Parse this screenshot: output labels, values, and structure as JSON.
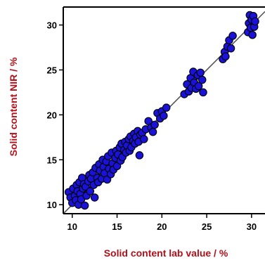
{
  "chart_data": {
    "type": "scatter",
    "xlabel": "Solid content lab value / %",
    "ylabel": "Solid content NIR / %",
    "xlim": [
      9,
      31.5
    ],
    "ylim": [
      9,
      32
    ],
    "xticks": [
      10,
      15,
      20,
      25,
      30
    ],
    "yticks": [
      10,
      15,
      20,
      25,
      30
    ],
    "grid": false,
    "legend": "none",
    "fit_line": {
      "from": [
        9,
        9
      ],
      "to": [
        31.5,
        31.5
      ]
    },
    "colors": {
      "marker_fill": "#1a12d8",
      "marker_edge": "#000000",
      "axis_title": "#b3101a",
      "fit_line": "#555555"
    },
    "series": [
      {
        "points": [
          [
            9.6,
            11.4
          ],
          [
            9.8,
            10.8
          ],
          [
            10.0,
            10.2
          ],
          [
            10.1,
            11.8
          ],
          [
            10.3,
            11.0
          ],
          [
            10.4,
            10.5
          ],
          [
            10.5,
            12.2
          ],
          [
            10.6,
            11.5
          ],
          [
            10.7,
            10.0
          ],
          [
            10.8,
            12.5
          ],
          [
            10.9,
            11.2
          ],
          [
            11.0,
            10.6
          ],
          [
            11.1,
            13.0
          ],
          [
            11.2,
            11.8
          ],
          [
            11.3,
            12.3
          ],
          [
            11.4,
            9.9
          ],
          [
            11.5,
            12.0
          ],
          [
            11.6,
            11.0
          ],
          [
            11.8,
            12.6
          ],
          [
            11.9,
            13.3
          ],
          [
            12.0,
            11.5
          ],
          [
            12.1,
            12.9
          ],
          [
            12.3,
            13.6
          ],
          [
            12.4,
            12.2
          ],
          [
            12.5,
            10.8
          ],
          [
            12.6,
            14.1
          ],
          [
            12.8,
            13.0
          ],
          [
            12.9,
            12.5
          ],
          [
            13.0,
            14.5
          ],
          [
            13.1,
            13.8
          ],
          [
            13.3,
            12.9
          ],
          [
            13.4,
            15.0
          ],
          [
            13.5,
            14.2
          ],
          [
            13.6,
            13.5
          ],
          [
            13.8,
            14.8
          ],
          [
            13.9,
            12.8
          ],
          [
            14.0,
            15.4
          ],
          [
            14.1,
            14.0
          ],
          [
            14.3,
            13.4
          ],
          [
            14.4,
            15.8
          ],
          [
            14.5,
            14.6
          ],
          [
            14.6,
            13.9
          ],
          [
            14.8,
            15.2
          ],
          [
            14.9,
            16.0
          ],
          [
            15.0,
            14.3
          ],
          [
            15.1,
            15.6
          ],
          [
            15.3,
            16.4
          ],
          [
            15.4,
            14.9
          ],
          [
            15.5,
            16.8
          ],
          [
            15.6,
            15.3
          ],
          [
            15.8,
            16.1
          ],
          [
            15.9,
            17.0
          ],
          [
            16.0,
            15.8
          ],
          [
            16.1,
            16.6
          ],
          [
            16.3,
            17.3
          ],
          [
            16.4,
            16.0
          ],
          [
            16.5,
            17.6
          ],
          [
            16.6,
            16.4
          ],
          [
            16.8,
            17.1
          ],
          [
            16.9,
            17.9
          ],
          [
            17.0,
            16.8
          ],
          [
            17.1,
            17.5
          ],
          [
            17.3,
            18.2
          ],
          [
            17.4,
            17.0
          ],
          [
            17.5,
            15.5
          ],
          [
            17.6,
            17.8
          ],
          [
            17.8,
            18.0
          ],
          [
            18.0,
            17.3
          ],
          [
            18.2,
            18.4
          ],
          [
            18.5,
            19.3
          ],
          [
            18.8,
            18.6
          ],
          [
            19.0,
            18.1
          ],
          [
            19.2,
            18.9
          ],
          [
            19.5,
            20.2
          ],
          [
            19.8,
            19.6
          ],
          [
            20.0,
            20.4
          ],
          [
            20.2,
            19.9
          ],
          [
            20.5,
            20.8
          ],
          [
            22.5,
            22.3
          ],
          [
            22.8,
            23.4
          ],
          [
            23.0,
            22.6
          ],
          [
            23.2,
            24.1
          ],
          [
            23.3,
            23.0
          ],
          [
            23.5,
            24.8
          ],
          [
            23.6,
            23.6
          ],
          [
            23.8,
            22.9
          ],
          [
            24.0,
            24.4
          ],
          [
            24.1,
            23.2
          ],
          [
            24.3,
            24.7
          ],
          [
            24.5,
            23.9
          ],
          [
            24.6,
            22.5
          ],
          [
            26.8,
            26.2
          ],
          [
            27.0,
            27.0
          ],
          [
            27.1,
            26.5
          ],
          [
            27.3,
            27.6
          ],
          [
            27.5,
            28.3
          ],
          [
            27.7,
            27.4
          ],
          [
            27.9,
            28.8
          ],
          [
            29.6,
            29.2
          ],
          [
            29.7,
            30.2
          ],
          [
            29.8,
            31.1
          ],
          [
            29.9,
            29.7
          ],
          [
            30.0,
            30.6
          ],
          [
            30.1,
            28.9
          ],
          [
            30.2,
            31.0
          ],
          [
            30.3,
            29.8
          ],
          [
            30.4,
            30.4
          ]
        ]
      }
    ]
  }
}
